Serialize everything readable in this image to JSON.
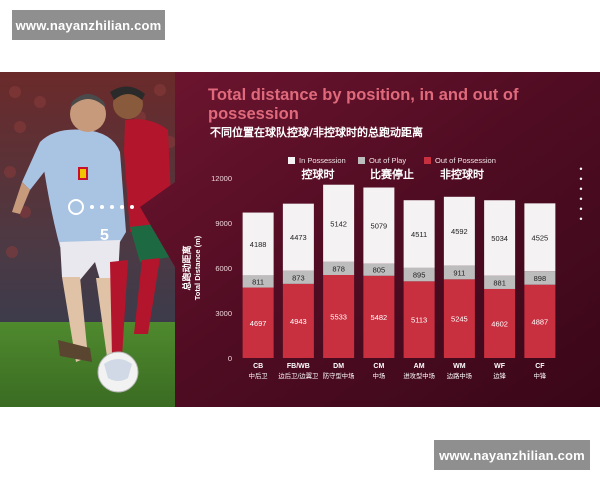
{
  "watermark_top": "www.nayanzhilian.com",
  "watermark_bottom": "www.nayanzhilian.com",
  "photo": {
    "description_icon": "football-players-photo",
    "jersey_number": "5"
  },
  "header": {
    "title_en": "Total distance by position, in and out of possession",
    "title_cn": "不同位置在球队控球/非控球时的总跑动距离"
  },
  "colors": {
    "bg_dark": "#4a0a1e",
    "bg_mid": "#6e1530",
    "in_possession": "#f4f2f2",
    "out_of_play": "#bdbdbd",
    "out_of_possession": "#c9303f",
    "accent": "#e06a7c"
  },
  "decor_dots": "• • • • • •",
  "chart_data": {
    "type": "bar",
    "stacked": true,
    "title": "Total distance by position, in and out of possession",
    "subtitle": "不同位置在球队控球/非控球时的总跑动距离",
    "ylabel": "Total Distance (m)",
    "ylabel_cn": "总跑动距离",
    "ylim": [
      0,
      12000
    ],
    "yticks": [
      0,
      3000,
      6000,
      9000,
      12000
    ],
    "grid": false,
    "legend_position": "top",
    "categories": [
      "CB",
      "FB/WB",
      "DM",
      "CM",
      "AM",
      "WM",
      "WF",
      "CF"
    ],
    "categories_cn": [
      "中后卫",
      "边后卫/边翼卫",
      "防守型中场",
      "中场",
      "进攻型中场",
      "边路中场",
      "边锋",
      "中锋"
    ],
    "series": [
      {
        "name": "Out of Possession",
        "name_cn": "非控球时",
        "values": [
          4697,
          4943,
          5533,
          5482,
          5113,
          5245,
          4602,
          4887
        ]
      },
      {
        "name": "Out of Play",
        "name_cn": "比赛停止",
        "values": [
          811,
          873,
          878,
          805,
          895,
          911,
          881,
          898
        ]
      },
      {
        "name": "In Possession",
        "name_cn": "控球时",
        "values": [
          4188,
          4473,
          5142,
          5079,
          4511,
          4592,
          5034,
          4525
        ]
      }
    ]
  }
}
